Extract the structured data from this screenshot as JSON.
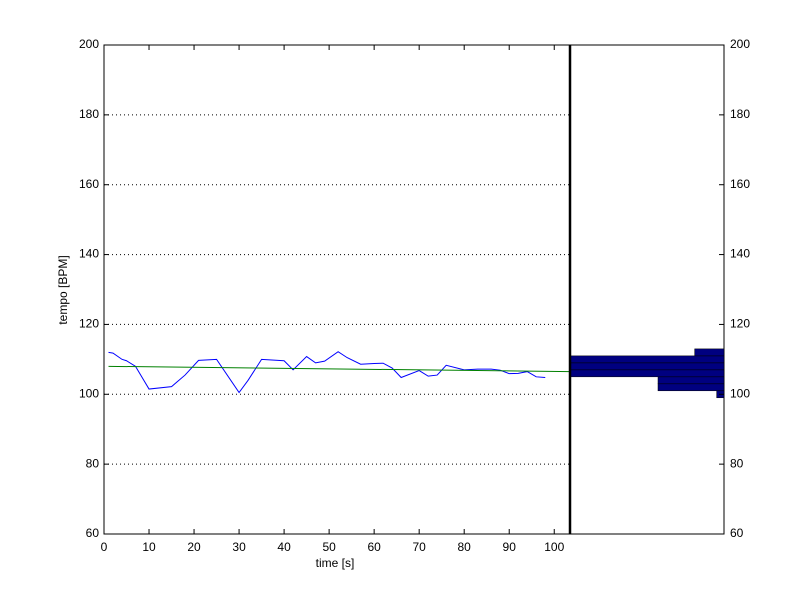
{
  "chart_data": [
    {
      "type": "line",
      "xlabel": "time [s]",
      "ylabel": "tempo [BPM]",
      "xlim": [
        0,
        103.5
      ],
      "xticks": [
        0,
        10,
        20,
        30,
        40,
        50,
        60,
        70,
        80,
        90,
        100
      ],
      "ylim": [
        60,
        200
      ],
      "yticks": [
        60,
        80,
        100,
        120,
        140,
        160,
        180,
        200
      ],
      "grid": true,
      "series": [
        {
          "color": "#0000ff",
          "x": [
            1,
            2,
            4,
            5,
            7,
            10,
            15,
            18,
            21,
            25,
            30,
            32,
            35,
            40,
            42,
            45,
            47,
            49,
            52,
            54,
            57,
            60,
            62,
            64,
            66,
            70,
            72,
            74,
            76,
            80,
            83,
            86,
            88,
            90,
            92,
            94,
            96,
            98
          ],
          "values": [
            112,
            111.8,
            110,
            109.6,
            108,
            101.5,
            102.2,
            105.5,
            109.7,
            110,
            100.5,
            104,
            110,
            109.6,
            107,
            110.8,
            109,
            109.5,
            112.2,
            110.5,
            108.6,
            108.8,
            108.9,
            107.5,
            104.8,
            106.8,
            105.2,
            105.5,
            108.3,
            107,
            107.2,
            107.2,
            106.9,
            105.9,
            106,
            106.5,
            105,
            104.8
          ]
        },
        {
          "color": "#008000",
          "x": [
            1,
            103.5
          ],
          "values": [
            108,
            106.5
          ]
        }
      ]
    },
    {
      "type": "histogram",
      "orientation": "horizontal",
      "xdir": "reverse",
      "bins": [
        99,
        101,
        103,
        105,
        107,
        109,
        111,
        113
      ],
      "counts": [
        1,
        9,
        9,
        21,
        21,
        21,
        4
      ],
      "color": "#000080",
      "xlim": [
        0,
        21
      ],
      "ylim": [
        60,
        200
      ],
      "yticks": [
        60,
        80,
        100,
        120,
        140,
        160,
        180,
        200
      ],
      "ytick_side": "right"
    }
  ]
}
